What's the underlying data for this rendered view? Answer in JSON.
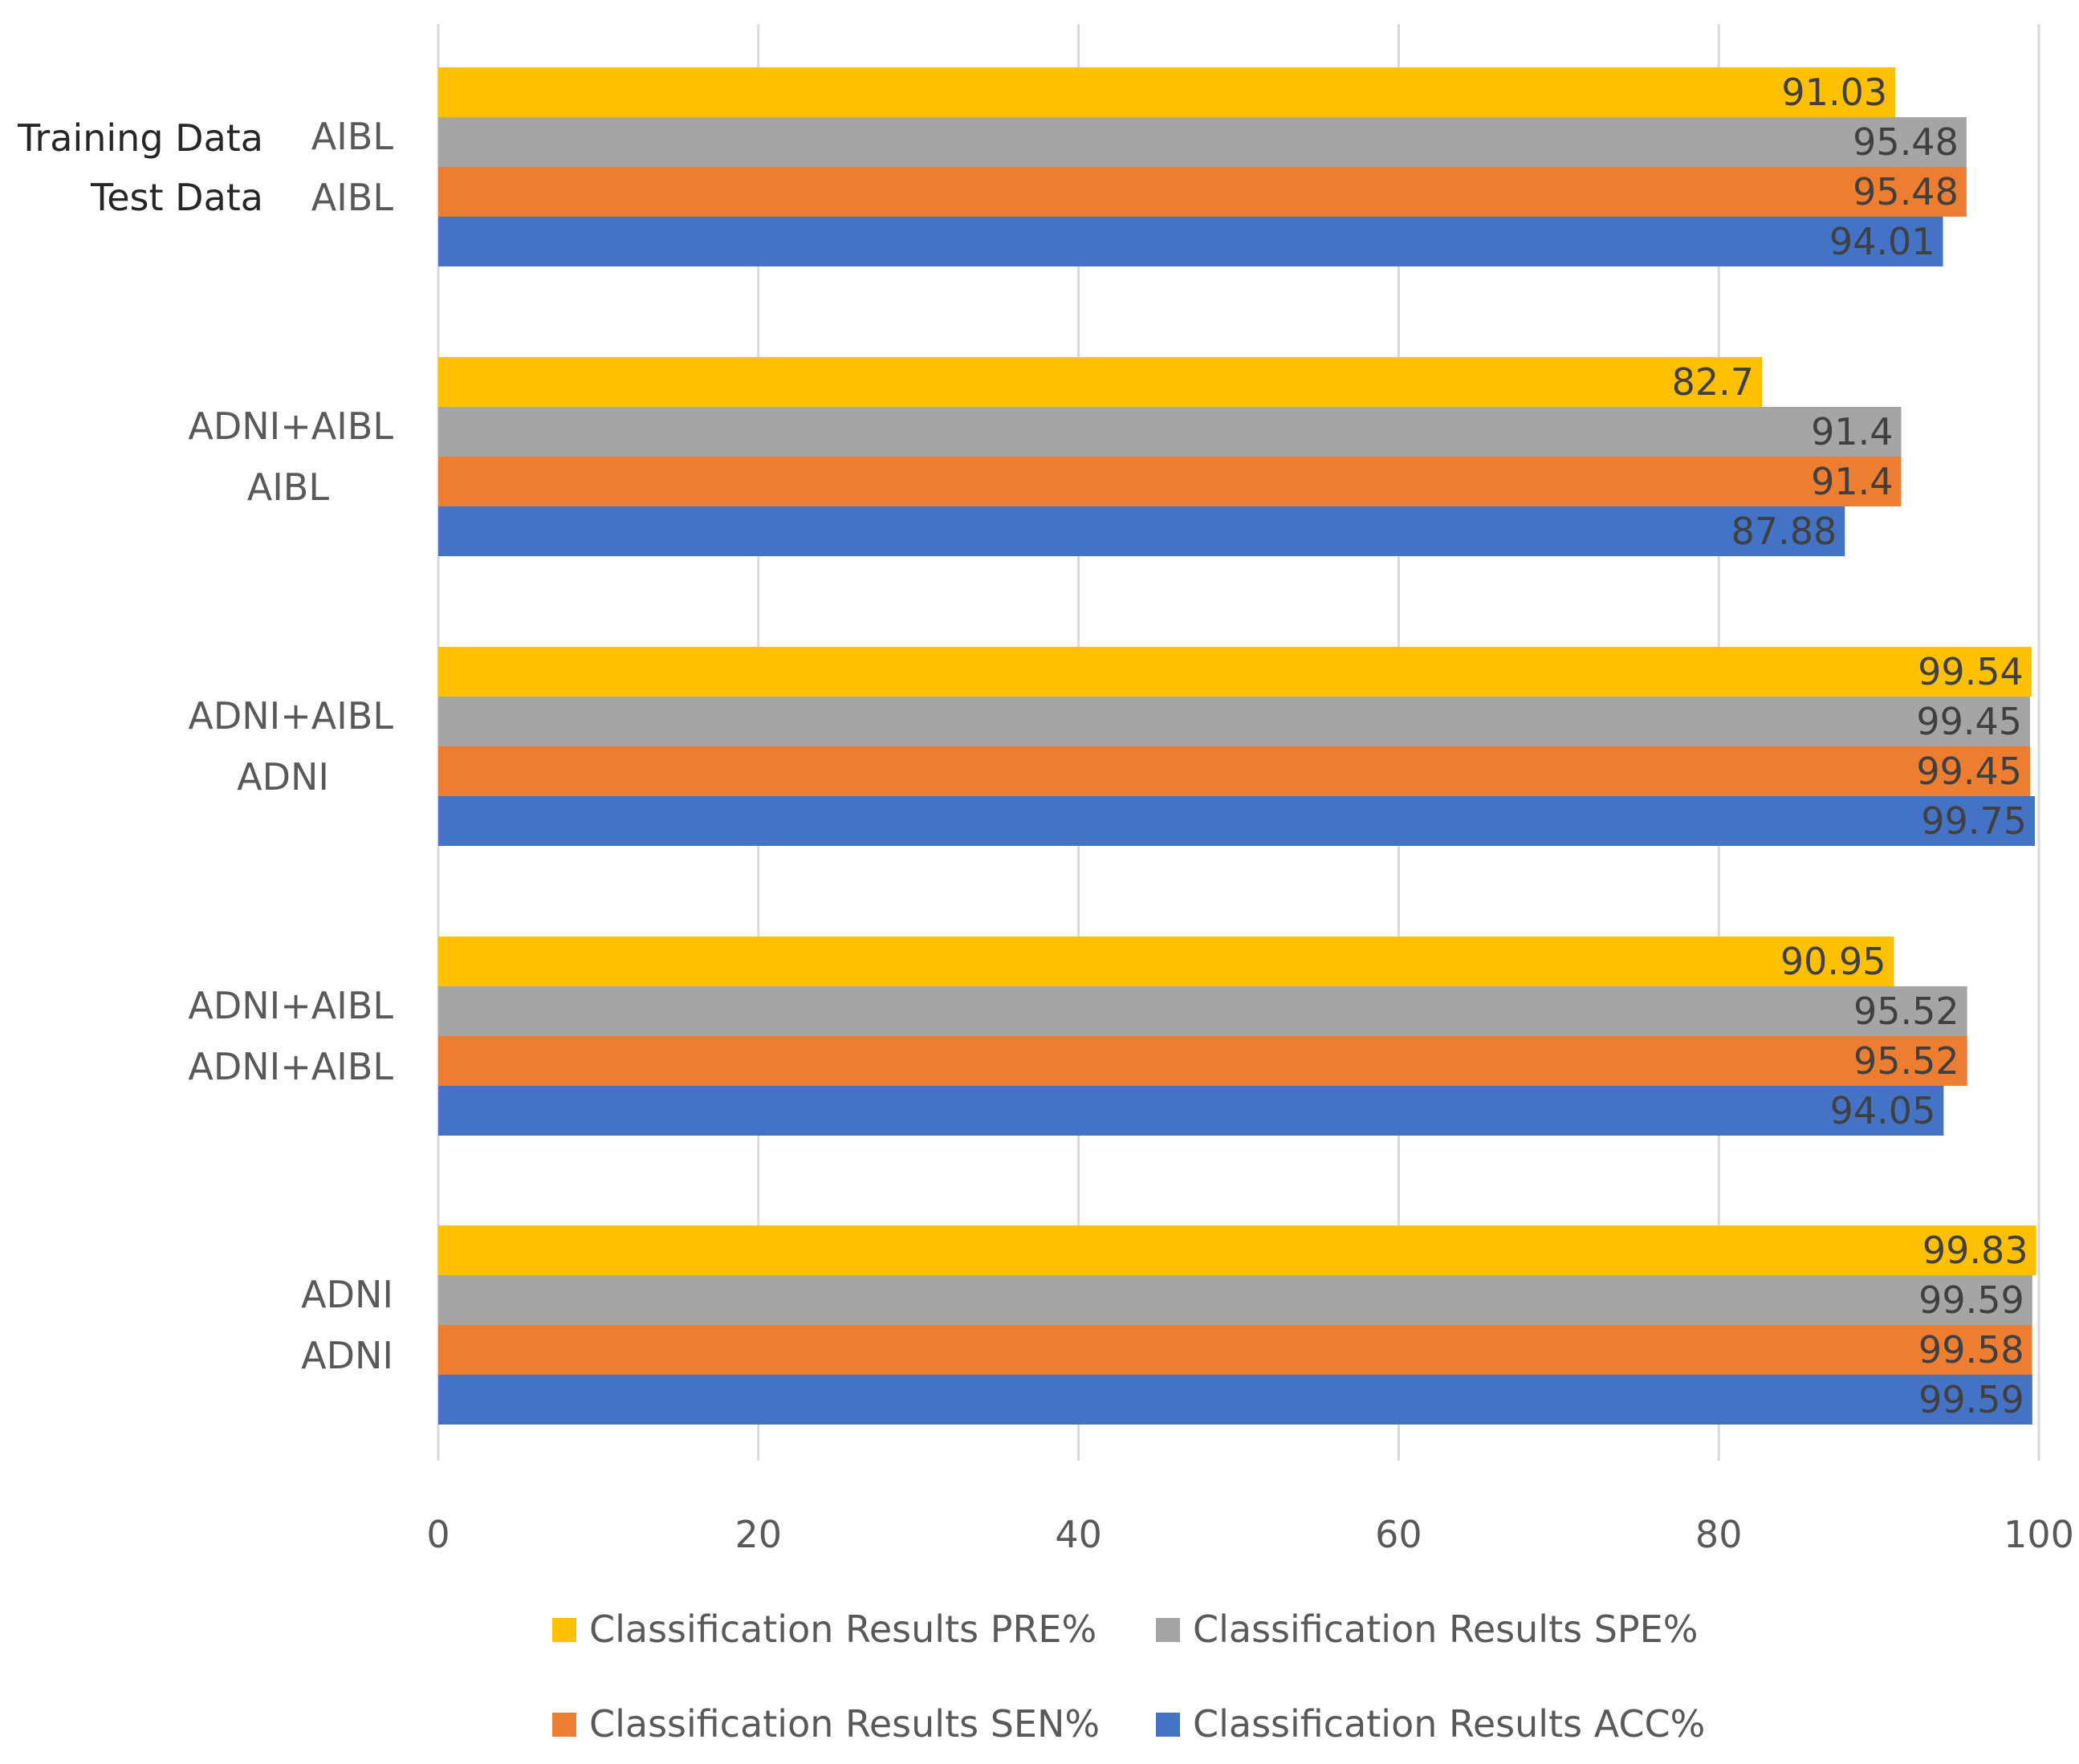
{
  "chart_data": {
    "type": "bar",
    "orientation": "horizontal",
    "row_headers": [
      "Training Data",
      "Test Data"
    ],
    "groups": [
      {
        "training": "AIBL",
        "test": "AIBL"
      },
      {
        "training": "ADNI+AIBL",
        "test": "AIBL"
      },
      {
        "training": "ADNI+AIBL",
        "test": "ADNI"
      },
      {
        "training": "ADNI+AIBL",
        "test": "ADNI+AIBL"
      },
      {
        "training": "ADNI",
        "test": "ADNI"
      }
    ],
    "series": [
      {
        "name": "Classification Results PRE%",
        "color": "#FFC000",
        "values": [
          91.03,
          82.7,
          99.54,
          90.95,
          99.83
        ]
      },
      {
        "name": "Classification Results SPE%",
        "color": "#A5A5A5",
        "values": [
          95.48,
          91.4,
          99.45,
          95.52,
          99.59
        ]
      },
      {
        "name": "Classification Results SEN%",
        "color": "#ED7D31",
        "values": [
          95.48,
          91.4,
          99.45,
          95.52,
          99.58
        ]
      },
      {
        "name": "Classification Results ACC%",
        "color": "#4472C4",
        "values": [
          94.01,
          87.88,
          99.75,
          94.05,
          99.59
        ]
      }
    ],
    "xlim": [
      0,
      100
    ],
    "xticks": [
      "0",
      "20",
      "40",
      "60",
      "80",
      "100"
    ],
    "grid": true,
    "legend": "bottom"
  }
}
